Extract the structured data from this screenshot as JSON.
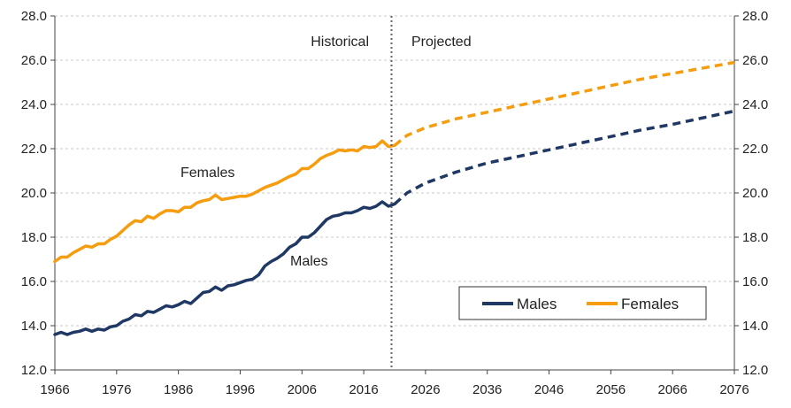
{
  "chart_data": {
    "type": "line",
    "title": "",
    "xlabel": "",
    "ylabel": "",
    "xlim": [
      1966,
      2076
    ],
    "ylim": [
      12.0,
      28.0
    ],
    "x_ticks": [
      "1966",
      "1976",
      "1986",
      "1996",
      "2006",
      "2016",
      "2026",
      "2036",
      "2046",
      "2056",
      "2066",
      "2076"
    ],
    "y_ticks": [
      "12.0",
      "14.0",
      "16.0",
      "18.0",
      "20.0",
      "22.0",
      "24.0",
      "26.0",
      "28.0"
    ],
    "grid": "horizontal-dashed",
    "divider_year": 2020.5,
    "legend_position": "bottom-right",
    "annotations": {
      "historical": "Historical",
      "projected": "Projected",
      "females_label": "Females",
      "males_label": "Males"
    },
    "series": [
      {
        "name": "Males",
        "color": "#1f3864",
        "historical": [
          [
            1966,
            13.6
          ],
          [
            1967,
            13.7
          ],
          [
            1968,
            13.6
          ],
          [
            1969,
            13.7
          ],
          [
            1970,
            13.75
          ],
          [
            1971,
            13.85
          ],
          [
            1972,
            13.75
          ],
          [
            1973,
            13.85
          ],
          [
            1974,
            13.8
          ],
          [
            1975,
            13.95
          ],
          [
            1976,
            14.0
          ],
          [
            1977,
            14.2
          ],
          [
            1978,
            14.3
          ],
          [
            1979,
            14.5
          ],
          [
            1980,
            14.45
          ],
          [
            1981,
            14.65
          ],
          [
            1982,
            14.6
          ],
          [
            1983,
            14.75
          ],
          [
            1984,
            14.9
          ],
          [
            1985,
            14.85
          ],
          [
            1986,
            14.95
          ],
          [
            1987,
            15.1
          ],
          [
            1988,
            15.0
          ],
          [
            1989,
            15.25
          ],
          [
            1990,
            15.5
          ],
          [
            1991,
            15.55
          ],
          [
            1992,
            15.75
          ],
          [
            1993,
            15.6
          ],
          [
            1994,
            15.8
          ],
          [
            1995,
            15.85
          ],
          [
            1996,
            15.95
          ],
          [
            1997,
            16.05
          ],
          [
            1998,
            16.1
          ],
          [
            1999,
            16.3
          ],
          [
            2000,
            16.7
          ],
          [
            2001,
            16.9
          ],
          [
            2002,
            17.05
          ],
          [
            2003,
            17.25
          ],
          [
            2004,
            17.55
          ],
          [
            2005,
            17.7
          ],
          [
            2006,
            18.0
          ],
          [
            2007,
            18.0
          ],
          [
            2008,
            18.2
          ],
          [
            2009,
            18.5
          ],
          [
            2010,
            18.8
          ],
          [
            2011,
            18.95
          ],
          [
            2012,
            19.0
          ],
          [
            2013,
            19.1
          ],
          [
            2014,
            19.1
          ],
          [
            2015,
            19.2
          ],
          [
            2016,
            19.35
          ],
          [
            2017,
            19.3
          ],
          [
            2018,
            19.4
          ],
          [
            2019,
            19.6
          ],
          [
            2020,
            19.4
          ],
          [
            2021,
            19.5
          ]
        ],
        "projected": [
          [
            2021,
            19.5
          ],
          [
            2023,
            20.0
          ],
          [
            2026,
            20.45
          ],
          [
            2031,
            20.95
          ],
          [
            2036,
            21.35
          ],
          [
            2041,
            21.65
          ],
          [
            2046,
            21.95
          ],
          [
            2051,
            22.25
          ],
          [
            2056,
            22.55
          ],
          [
            2061,
            22.85
          ],
          [
            2066,
            23.1
          ],
          [
            2071,
            23.4
          ],
          [
            2076,
            23.7
          ]
        ]
      },
      {
        "name": "Females",
        "color": "#f59d0e",
        "historical": [
          [
            1966,
            16.9
          ],
          [
            1967,
            17.1
          ],
          [
            1968,
            17.1
          ],
          [
            1969,
            17.3
          ],
          [
            1970,
            17.45
          ],
          [
            1971,
            17.6
          ],
          [
            1972,
            17.55
          ],
          [
            1973,
            17.7
          ],
          [
            1974,
            17.7
          ],
          [
            1975,
            17.9
          ],
          [
            1976,
            18.05
          ],
          [
            1977,
            18.3
          ],
          [
            1978,
            18.55
          ],
          [
            1979,
            18.75
          ],
          [
            1980,
            18.7
          ],
          [
            1981,
            18.95
          ],
          [
            1982,
            18.85
          ],
          [
            1983,
            19.05
          ],
          [
            1984,
            19.2
          ],
          [
            1985,
            19.2
          ],
          [
            1986,
            19.15
          ],
          [
            1987,
            19.35
          ],
          [
            1988,
            19.35
          ],
          [
            1989,
            19.55
          ],
          [
            1990,
            19.65
          ],
          [
            1991,
            19.7
          ],
          [
            1992,
            19.9
          ],
          [
            1993,
            19.7
          ],
          [
            1994,
            19.75
          ],
          [
            1995,
            19.8
          ],
          [
            1996,
            19.85
          ],
          [
            1997,
            19.85
          ],
          [
            1998,
            19.95
          ],
          [
            1999,
            20.1
          ],
          [
            2000,
            20.25
          ],
          [
            2001,
            20.35
          ],
          [
            2002,
            20.45
          ],
          [
            2003,
            20.6
          ],
          [
            2004,
            20.75
          ],
          [
            2005,
            20.85
          ],
          [
            2006,
            21.1
          ],
          [
            2007,
            21.1
          ],
          [
            2008,
            21.3
          ],
          [
            2009,
            21.55
          ],
          [
            2010,
            21.7
          ],
          [
            2011,
            21.8
          ],
          [
            2012,
            21.95
          ],
          [
            2013,
            21.9
          ],
          [
            2014,
            21.95
          ],
          [
            2015,
            21.9
          ],
          [
            2016,
            22.1
          ],
          [
            2017,
            22.05
          ],
          [
            2018,
            22.1
          ],
          [
            2019,
            22.35
          ],
          [
            2020,
            22.1
          ],
          [
            2021,
            22.15
          ]
        ],
        "projected": [
          [
            2021,
            22.15
          ],
          [
            2023,
            22.6
          ],
          [
            2026,
            22.95
          ],
          [
            2031,
            23.35
          ],
          [
            2036,
            23.65
          ],
          [
            2041,
            23.95
          ],
          [
            2046,
            24.25
          ],
          [
            2051,
            24.55
          ],
          [
            2056,
            24.85
          ],
          [
            2061,
            25.15
          ],
          [
            2066,
            25.4
          ],
          [
            2071,
            25.65
          ],
          [
            2076,
            25.9
          ]
        ]
      }
    ]
  }
}
